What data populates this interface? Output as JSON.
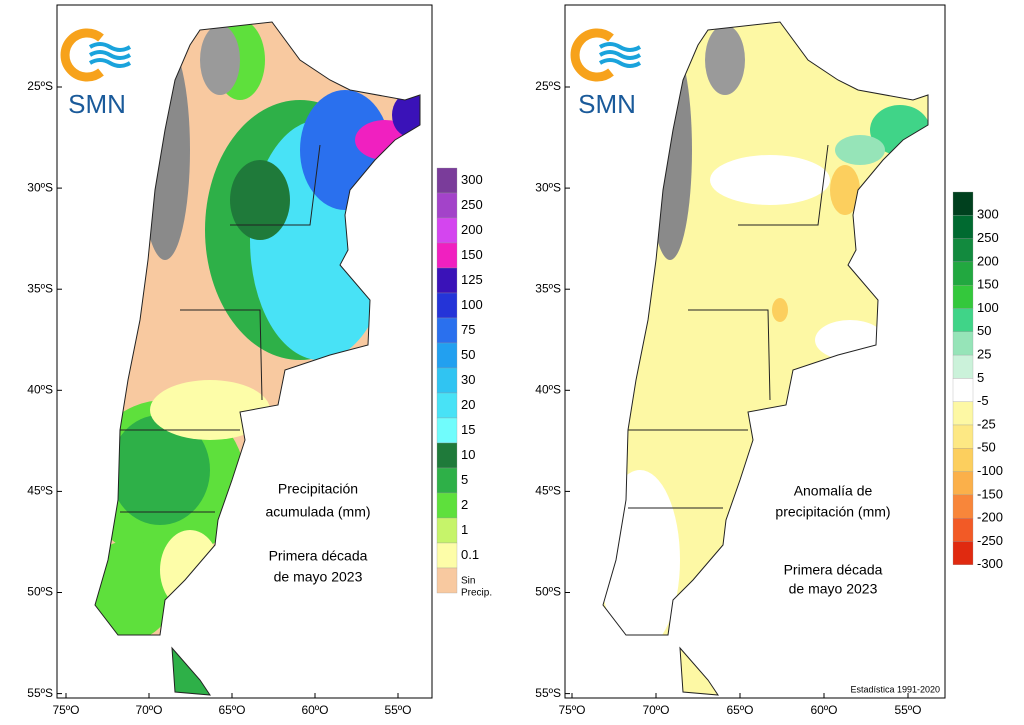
{
  "left_map": {
    "logo": "SMN",
    "title_lines": [
      "Precipitación",
      "acumulada (mm)"
    ],
    "period_lines": [
      "Primera década",
      "de mayo 2023"
    ],
    "lat_labels": [
      "25ºS",
      "30ºS",
      "35ºS",
      "40ºS",
      "45ºS",
      "50ºS",
      "55ºS"
    ],
    "lon_labels": [
      "75ºO",
      "70ºO",
      "65ºO",
      "60ºO",
      "55ºO"
    ],
    "legend": [
      {
        "label": "300",
        "color": "#7a3c9a"
      },
      {
        "label": "250",
        "color": "#a343c9"
      },
      {
        "label": "200",
        "color": "#d445ef"
      },
      {
        "label": "150",
        "color": "#f020c0"
      },
      {
        "label": "125",
        "color": "#3a12b8"
      },
      {
        "label": "100",
        "color": "#2434d8"
      },
      {
        "label": "75",
        "color": "#2a70ee"
      },
      {
        "label": "50",
        "color": "#22a0f0"
      },
      {
        "label": "30",
        "color": "#30c4f2"
      },
      {
        "label": "20",
        "color": "#48e2f6"
      },
      {
        "label": "15",
        "color": "#70fcfc"
      },
      {
        "label": "10",
        "color": "#1f7a3a"
      },
      {
        "label": "5",
        "color": "#2eb048"
      },
      {
        "label": "2",
        "color": "#5ee03c"
      },
      {
        "label": "1",
        "color": "#c6f46a"
      },
      {
        "label": "0.1",
        "color": "#fdfda8"
      },
      {
        "label": "Sin Precip.",
        "color": "#f8c9a0"
      }
    ]
  },
  "right_map": {
    "logo": "SMN",
    "title_lines": [
      "Anomalía de",
      "precipitación (mm)"
    ],
    "period_lines": [
      "Primera década",
      "de mayo 2023"
    ],
    "footnote": "Estadística 1991-2020",
    "lat_labels": [
      "25ºS",
      "30ºS",
      "35ºS",
      "40ºS",
      "45ºS",
      "50ºS",
      "55ºS"
    ],
    "lon_labels": [
      "75ºO",
      "70ºO",
      "65ºO",
      "60ºO",
      "55ºO"
    ],
    "legend": [
      {
        "label": "300",
        "color": "#00401e"
      },
      {
        "label": "250",
        "color": "#006a30"
      },
      {
        "label": "200",
        "color": "#128a3e"
      },
      {
        "label": "150",
        "color": "#22a840"
      },
      {
        "label": "100",
        "color": "#34c83c"
      },
      {
        "label": "50",
        "color": "#40d488"
      },
      {
        "label": "25",
        "color": "#96e4b8"
      },
      {
        "label": "5",
        "color": "#cbf2da"
      },
      {
        "label": "-5",
        "color": "#ffffff"
      },
      {
        "label": "-25",
        "color": "#fdf8a4"
      },
      {
        "label": "-50",
        "color": "#fde884"
      },
      {
        "label": "-100",
        "color": "#fccf5e"
      },
      {
        "label": "-150",
        "color": "#fbb04a"
      },
      {
        "label": "-200",
        "color": "#f8863a"
      },
      {
        "label": "-250",
        "color": "#f25a26"
      },
      {
        "label": "-300",
        "color": "#e02a10"
      }
    ]
  }
}
